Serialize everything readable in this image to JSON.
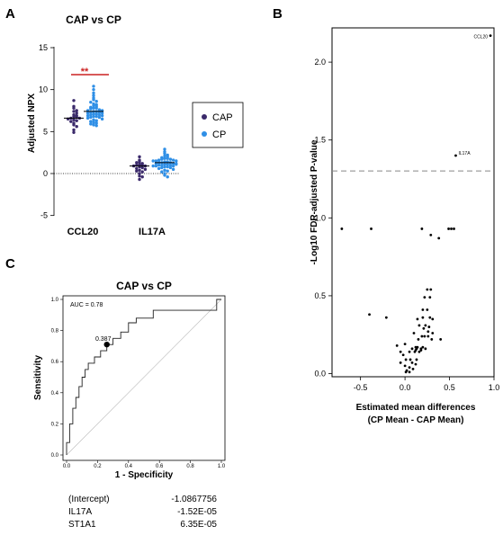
{
  "chart_data": [
    {
      "panel": "A",
      "type": "scatter",
      "title": "CAP vs CP",
      "ylabel": "Adjusted NPX",
      "ylim": [
        -5,
        15
      ],
      "yticks": [
        -5,
        0,
        5,
        10,
        15
      ],
      "categories": [
        "CCL20",
        "IL17A"
      ],
      "legend": {
        "position": "right",
        "entries": [
          "CAP",
          "CP"
        ]
      },
      "colors": {
        "CAP": "#3b2a6b",
        "CP": "#2f8fe6",
        "significance": "#cc2222"
      },
      "significance": {
        "category": "CCL20",
        "label": "**"
      },
      "series": [
        {
          "name": "CAP",
          "median": [
            6.6,
            0.9
          ],
          "values": [
            [
              8.7,
              8.0,
              7.8,
              7.5,
              7.4,
              7.2,
              7.0,
              6.9,
              6.8,
              6.7,
              6.6,
              6.6,
              6.5,
              6.4,
              6.3,
              6.2,
              6.0,
              5.8,
              5.6,
              5.2,
              4.9
            ],
            [
              2.0,
              1.6,
              1.4,
              1.2,
              1.1,
              1.0,
              1.0,
              0.9,
              0.9,
              0.8,
              0.7,
              0.6,
              0.4,
              0.2,
              0.0,
              -0.3,
              -0.7,
              -0.4,
              1.3,
              0.5,
              0.3
            ]
          ]
        },
        {
          "name": "CP",
          "median": [
            7.4,
            1.3
          ],
          "values": [
            [
              10.4,
              10.0,
              9.6,
              9.3,
              9.0,
              8.8,
              8.6,
              8.5,
              8.3,
              8.2,
              8.1,
              8.0,
              7.9,
              7.8,
              7.8,
              7.7,
              7.6,
              7.5,
              7.5,
              7.4,
              7.4,
              7.3,
              7.3,
              7.2,
              7.2,
              7.1,
              7.1,
              7.0,
              7.0,
              6.9,
              6.9,
              6.8,
              6.8,
              6.7,
              6.7,
              6.6,
              6.5,
              6.4,
              6.3,
              6.2,
              6.1,
              6.0,
              5.9,
              5.8,
              5.7
            ],
            [
              2.9,
              2.6,
              2.4,
              2.2,
              2.1,
              2.0,
              1.9,
              1.8,
              1.8,
              1.7,
              1.7,
              1.6,
              1.6,
              1.5,
              1.5,
              1.4,
              1.4,
              1.3,
              1.3,
              1.3,
              1.2,
              1.2,
              1.2,
              1.1,
              1.1,
              1.0,
              1.0,
              1.0,
              0.9,
              0.9,
              0.8,
              0.8,
              0.7,
              0.7,
              0.6,
              0.5,
              0.4,
              0.3,
              0.2,
              0.0,
              -0.2,
              -0.4,
              1.5,
              1.1,
              0.9
            ]
          ]
        }
      ]
    },
    {
      "panel": "B",
      "type": "scatter",
      "xlabel": "Estimated mean differences",
      "xlabel2": "(CP Mean - CAP Mean)",
      "ylabel": "-Log10 FDR-adjusted P-value",
      "xlim": [
        -0.82,
        1.0
      ],
      "ylim": [
        -0.02,
        2.22
      ],
      "xticks": [
        -0.5,
        0.0,
        0.5,
        1.0
      ],
      "xtick_labels": [
        "-0.5",
        "0.0",
        "0.5",
        "1.0"
      ],
      "yticks": [
        0.0,
        0.5,
        1.0,
        1.5,
        2.0
      ],
      "ytick_labels": [
        "0.0",
        "0.5",
        "1.0",
        "1.5",
        "2.0"
      ],
      "threshold": 1.301,
      "annotations": [
        {
          "label": "CCL20",
          "x": 0.96,
          "y": 2.17
        },
        {
          "label": "IL17A",
          "x": 0.57,
          "y": 1.4
        }
      ],
      "points": [
        [
          0.96,
          2.17
        ],
        [
          0.57,
          1.4
        ],
        [
          -0.71,
          0.93
        ],
        [
          -0.38,
          0.93
        ],
        [
          0.19,
          0.93
        ],
        [
          0.49,
          0.93
        ],
        [
          0.52,
          0.93
        ],
        [
          0.55,
          0.93
        ],
        [
          0.38,
          0.87
        ],
        [
          0.29,
          0.89
        ],
        [
          0.25,
          0.54
        ],
        [
          0.29,
          0.54
        ],
        [
          0.22,
          0.49
        ],
        [
          0.28,
          0.49
        ],
        [
          -0.4,
          0.38
        ],
        [
          -0.21,
          0.36
        ],
        [
          0.2,
          0.41
        ],
        [
          0.25,
          0.41
        ],
        [
          0.14,
          0.35
        ],
        [
          0.2,
          0.36
        ],
        [
          0.28,
          0.36
        ],
        [
          0.31,
          0.35
        ],
        [
          0.16,
          0.31
        ],
        [
          0.23,
          0.31
        ],
        [
          0.27,
          0.3
        ],
        [
          0.21,
          0.29
        ],
        [
          0.26,
          0.27
        ],
        [
          0.1,
          0.26
        ],
        [
          0.31,
          0.26
        ],
        [
          0.19,
          0.24
        ],
        [
          0.22,
          0.24
        ],
        [
          0.26,
          0.24
        ],
        [
          0.3,
          0.22
        ],
        [
          0.4,
          0.22
        ],
        [
          0.15,
          0.22
        ],
        [
          -0.09,
          0.18
        ],
        [
          0.0,
          0.19
        ],
        [
          0.12,
          0.17
        ],
        [
          0.14,
          0.17
        ],
        [
          0.2,
          0.17
        ],
        [
          0.08,
          0.16
        ],
        [
          0.13,
          0.16
        ],
        [
          0.18,
          0.16
        ],
        [
          0.23,
          0.16
        ],
        [
          0.12,
          0.15
        ],
        [
          0.18,
          0.15
        ],
        [
          -0.05,
          0.14
        ],
        [
          0.05,
          0.14
        ],
        [
          0.11,
          0.14
        ],
        [
          0.16,
          0.14
        ],
        [
          -0.02,
          0.12
        ],
        [
          0.01,
          0.09
        ],
        [
          0.06,
          0.09
        ],
        [
          0.13,
          0.09
        ],
        [
          0.08,
          0.07
        ],
        [
          0.12,
          0.06
        ],
        [
          0.0,
          0.05
        ],
        [
          0.05,
          0.04
        ],
        [
          0.09,
          0.03
        ],
        [
          0.02,
          0.02
        ],
        [
          0.01,
          0.01
        ],
        [
          0.05,
          0.01
        ],
        [
          -0.05,
          0.07
        ]
      ]
    },
    {
      "panel": "C",
      "type": "line",
      "title": "CAP vs CP",
      "xlabel": "1 - Specificity",
      "ylabel": "Sensitivity",
      "xlim": [
        0,
        1
      ],
      "ylim": [
        0,
        1
      ],
      "xticks": [
        0.0,
        0.2,
        0.4,
        0.6,
        0.8,
        1.0
      ],
      "xtick_labels": [
        "0.0",
        "0.2",
        "0.4",
        "0.6",
        "0.8",
        "1.0"
      ],
      "yticks": [
        0.0,
        0.2,
        0.4,
        0.6,
        0.8,
        1.0
      ],
      "ytick_labels": [
        "0.0",
        "0.2",
        "0.4",
        "0.6",
        "0.8",
        "1.0"
      ],
      "auc_text": "AUC = 0.78",
      "optimal_point": {
        "x": 0.26,
        "y": 0.71,
        "label": "0.387"
      },
      "roc": [
        [
          0.0,
          0.0
        ],
        [
          0.0,
          0.08
        ],
        [
          0.02,
          0.08
        ],
        [
          0.02,
          0.2
        ],
        [
          0.04,
          0.2
        ],
        [
          0.04,
          0.3
        ],
        [
          0.06,
          0.3
        ],
        [
          0.06,
          0.37
        ],
        [
          0.08,
          0.37
        ],
        [
          0.08,
          0.44
        ],
        [
          0.1,
          0.44
        ],
        [
          0.1,
          0.5
        ],
        [
          0.12,
          0.5
        ],
        [
          0.12,
          0.55
        ],
        [
          0.14,
          0.55
        ],
        [
          0.14,
          0.59
        ],
        [
          0.18,
          0.59
        ],
        [
          0.18,
          0.63
        ],
        [
          0.22,
          0.63
        ],
        [
          0.22,
          0.67
        ],
        [
          0.26,
          0.67
        ],
        [
          0.26,
          0.71
        ],
        [
          0.3,
          0.71
        ],
        [
          0.3,
          0.75
        ],
        [
          0.35,
          0.75
        ],
        [
          0.35,
          0.79
        ],
        [
          0.4,
          0.79
        ],
        [
          0.4,
          0.85
        ],
        [
          0.45,
          0.85
        ],
        [
          0.45,
          0.88
        ],
        [
          0.56,
          0.88
        ],
        [
          0.56,
          0.93
        ],
        [
          0.97,
          0.93
        ],
        [
          0.97,
          1.0
        ],
        [
          1.0,
          1.0
        ]
      ],
      "coefficients": [
        {
          "name": "(Intercept)",
          "value": "-1.0867756"
        },
        {
          "name": "IL17A",
          "value": "-1.52E-05"
        },
        {
          "name": "ST1A1",
          "value": "6.35E-05"
        }
      ]
    }
  ],
  "panel_labels": {
    "a": "A",
    "b": "B",
    "c": "C"
  },
  "significance_stars": "**"
}
